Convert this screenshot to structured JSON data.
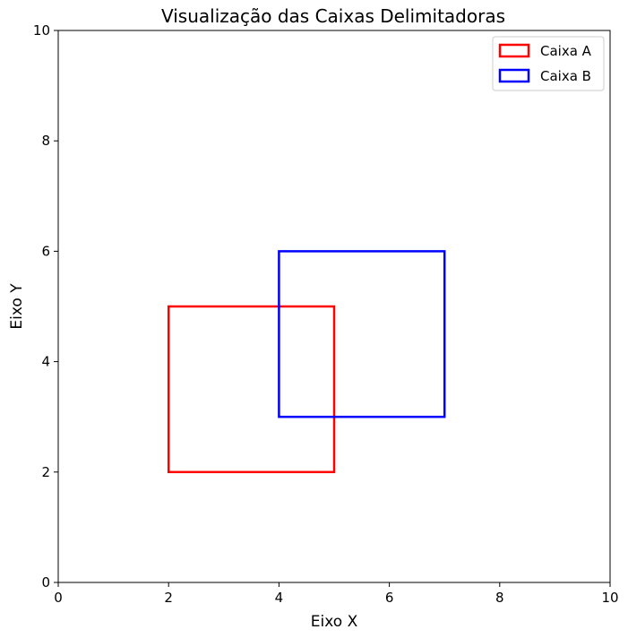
{
  "chart_data": {
    "type": "rectangles",
    "title": "Visualização das Caixas Delimitadoras",
    "xlabel": "Eixo X",
    "ylabel": "Eixo Y",
    "xlim": [
      0,
      10
    ],
    "ylim": [
      0,
      10
    ],
    "xticks": [
      0,
      2,
      4,
      6,
      8,
      10
    ],
    "yticks": [
      0,
      2,
      4,
      6,
      8,
      10
    ],
    "grid": false,
    "legend_position": "top-right",
    "series": [
      {
        "name": "Caixa A",
        "color": "#ff0000",
        "x_min": 2,
        "y_min": 2,
        "x_max": 5,
        "y_max": 5
      },
      {
        "name": "Caixa B",
        "color": "#0000ff",
        "x_min": 4,
        "y_min": 3,
        "x_max": 7,
        "y_max": 6
      }
    ]
  }
}
